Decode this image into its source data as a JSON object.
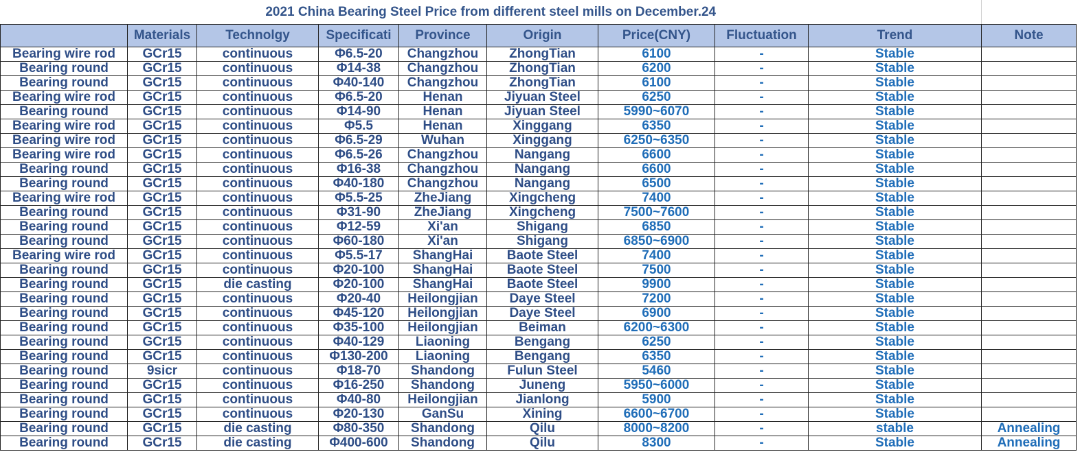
{
  "title": "2021 China Bearing Steel Price from different steel mills on  December.24",
  "headers": [
    "",
    "Materials",
    "Technolgy",
    "Specificati",
    "Province",
    "Origin",
    "Price(CNY)",
    "Fluctuation",
    "Trend",
    "Note"
  ],
  "rows": [
    [
      "Bearing wire rod",
      "GCr15",
      "continuous",
      "Φ6.5-20",
      "Changzhou",
      "ZhongTian",
      "6100",
      "-",
      "Stable",
      ""
    ],
    [
      "Bearing round",
      "GCr15",
      "continuous",
      "Φ14-38",
      "Changzhou",
      "ZhongTian",
      "6200",
      "-",
      "Stable",
      ""
    ],
    [
      "Bearing round",
      "GCr15",
      "continuous",
      "Φ40-140",
      "Changzhou",
      "ZhongTian",
      "6100",
      "-",
      "Stable",
      ""
    ],
    [
      "Bearing wire rod",
      "GCr15",
      "continuous",
      "Φ6.5-20",
      "Henan",
      "Jiyuan Steel",
      "6250",
      "-",
      "Stable",
      ""
    ],
    [
      "Bearing round",
      "GCr15",
      "continuous",
      "Φ14-90",
      "Henan",
      "Jiyuan Steel",
      "5990~6070",
      "-",
      "Stable",
      ""
    ],
    [
      "Bearing wire rod",
      "GCr15",
      "continuous",
      "Φ5.5",
      "Henan",
      "Xinggang",
      "6350",
      "-",
      "Stable",
      ""
    ],
    [
      "Bearing wire rod",
      "GCr15",
      "continuous",
      "Φ6.5-29",
      "Wuhan",
      "Xinggang",
      "6250~6350",
      "-",
      "Stable",
      ""
    ],
    [
      "Bearing wire rod",
      "GCr15",
      "continuous",
      "Φ6.5-26",
      "Changzhou",
      "Nangang",
      "6600",
      "-",
      "Stable",
      ""
    ],
    [
      "Bearing round",
      "GCr15",
      "continuous",
      "Φ16-38",
      "Changzhou",
      "Nangang",
      "6600",
      "-",
      "Stable",
      ""
    ],
    [
      "Bearing round",
      "GCr15",
      "continuous",
      "Φ40-180",
      "Changzhou",
      "Nangang",
      "6500",
      "-",
      "Stable",
      ""
    ],
    [
      "Bearing wire rod",
      "GCr15",
      "continuous",
      "Φ5.5-25",
      "ZheJiang",
      "Xingcheng",
      "7400",
      "-",
      "Stable",
      ""
    ],
    [
      "Bearing round",
      "GCr15",
      "continuous",
      "Φ31-90",
      "ZheJiang",
      "Xingcheng",
      "7500~7600",
      "-",
      "Stable",
      ""
    ],
    [
      "Bearing round",
      "GCr15",
      "continuous",
      "Φ12-59",
      "Xi'an",
      "Shigang",
      "6850",
      "-",
      "Stable",
      ""
    ],
    [
      "Bearing round",
      "GCr15",
      "continuous",
      "Φ60-180",
      "Xi'an",
      "Shigang",
      "6850~6900",
      "-",
      "Stable",
      ""
    ],
    [
      "Bearing wire rod",
      "GCr15",
      "continuous",
      "Φ5.5-17",
      "ShangHai",
      "Baote Steel",
      "7400",
      "-",
      "Stable",
      ""
    ],
    [
      "Bearing round",
      "GCr15",
      "continuous",
      "Φ20-100",
      "ShangHai",
      "Baote Steel",
      "7500",
      "-",
      "Stable",
      ""
    ],
    [
      "Bearing round",
      "GCr15",
      "die casting",
      "Φ20-100",
      "ShangHai",
      "Baote Steel",
      "9900",
      "-",
      "Stable",
      ""
    ],
    [
      "Bearing round",
      "GCr15",
      "continuous",
      "Φ20-40",
      "Heilongjian",
      "Daye  Steel",
      "7200",
      "-",
      "Stable",
      ""
    ],
    [
      "Bearing round",
      "GCr15",
      "continuous",
      "Φ45-120",
      "Heilongjian",
      "Daye  Steel",
      "6900",
      "-",
      "Stable",
      ""
    ],
    [
      "Bearing round",
      "GCr15",
      "continuous",
      "Φ35-100",
      "Heilongjian",
      "Beiman",
      "6200~6300",
      "-",
      "Stable",
      ""
    ],
    [
      "Bearing round",
      "GCr15",
      "continuous",
      "Φ40-129",
      "Liaoning",
      "Bengang",
      "6250",
      "-",
      "Stable",
      ""
    ],
    [
      "Bearing round",
      "GCr15",
      "continuous",
      "Φ130-200",
      "Liaoning",
      "Bengang",
      "6350",
      "-",
      "Stable",
      ""
    ],
    [
      "Bearing round",
      "9sicr",
      "continuous",
      "Φ18-70",
      "Shandong",
      "Fulun Steel",
      "5460",
      "-",
      "Stable",
      ""
    ],
    [
      "Bearing round",
      "GCr15",
      "continuous",
      "Φ16-250",
      "Shandong",
      "Juneng",
      "5950~6000",
      "-",
      "Stable",
      ""
    ],
    [
      "Bearing round",
      "GCr15",
      "continuous",
      "Φ40-80",
      "Heilongjian",
      "Jianlong",
      "5900",
      "-",
      "Stable",
      ""
    ],
    [
      "Bearing round",
      "GCr15",
      "continuous",
      "Φ20-130",
      "GanSu",
      "Xining",
      "6600~6700",
      "-",
      "Stable",
      ""
    ],
    [
      "Bearing round",
      "GCr15",
      "die casting",
      "Φ80-350",
      "Shandong",
      "Qilu",
      "8000~8200",
      "-",
      "stable",
      "Annealing"
    ],
    [
      "Bearing round",
      "GCr15",
      "die casting",
      "Φ400-600",
      "Shandong",
      "Qilu",
      "8300",
      "-",
      "Stable",
      "Annealing"
    ]
  ],
  "colors": {
    "header_bg": "#b4c6e7",
    "header_text": "#34558b",
    "text_dark": "#2e4d86",
    "text_blue": "#1f6db8"
  }
}
